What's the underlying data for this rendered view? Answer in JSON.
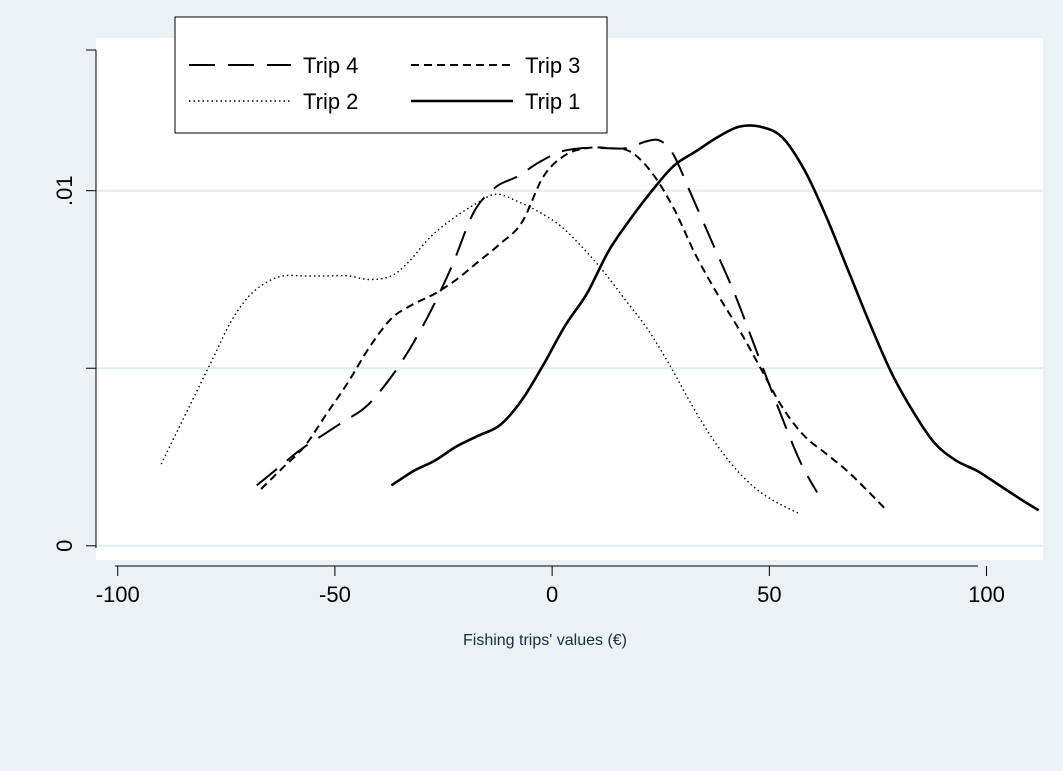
{
  "chart_data": {
    "type": "line",
    "title": "",
    "xlabel": "Fishing trips' values (€)",
    "ylabel": "",
    "xlim": [
      -105,
      113
    ],
    "ylim": [
      -0.0004,
      0.0143
    ],
    "x_ticks": [
      -100,
      -50,
      0,
      50,
      100
    ],
    "x_tick_labels": [
      "-100",
      "-50",
      "0",
      "50",
      "100"
    ],
    "y_ticks": [
      0,
      0.01
    ],
    "y_tick_labels": [
      "0",
      ".01"
    ],
    "y_gridlines": [
      0,
      0.005,
      0.01
    ],
    "grid": true,
    "legend_position": "top-left",
    "colors": {
      "background": "#eaf2f3",
      "plot_area": "#ffffff",
      "grid": "#e3ecee",
      "lines": "#000000"
    },
    "series": [
      {
        "name": "Trip 4",
        "style": "long-dash",
        "x": [
          -68,
          -63,
          -58,
          -53,
          -48,
          -43,
          -38,
          -33,
          -28,
          -23,
          -18,
          -13,
          -8,
          -3,
          2,
          7,
          12,
          17,
          22,
          25,
          28,
          32,
          37,
          42,
          47,
          52,
          57,
          61
        ],
        "y": [
          0.0017,
          0.0022,
          0.0027,
          0.0031,
          0.0035,
          0.0039,
          0.0046,
          0.0055,
          0.0066,
          0.0079,
          0.0094,
          0.0101,
          0.0104,
          0.0108,
          0.0111,
          0.0112,
          0.0112,
          0.0112,
          0.0114,
          0.0114,
          0.011,
          0.0099,
          0.0085,
          0.0071,
          0.0055,
          0.0039,
          0.0024,
          0.0015
        ]
      },
      {
        "name": "Trip 3",
        "style": "short-dash",
        "x": [
          -67,
          -62,
          -57,
          -52,
          -47,
          -42,
          -37,
          -32,
          -27,
          -22,
          -17,
          -12,
          -7,
          -2,
          3,
          8,
          13,
          18,
          23,
          28,
          33,
          38,
          43,
          48,
          53,
          58,
          63,
          68,
          73,
          77
        ],
        "y": [
          0.0016,
          0.0022,
          0.0028,
          0.0037,
          0.0046,
          0.0056,
          0.0064,
          0.0068,
          0.0071,
          0.0075,
          0.008,
          0.0085,
          0.0091,
          0.0104,
          0.011,
          0.0112,
          0.0112,
          0.0111,
          0.0105,
          0.0095,
          0.0082,
          0.0071,
          0.0061,
          0.005,
          0.0039,
          0.0031,
          0.0026,
          0.0021,
          0.0015,
          0.001
        ]
      },
      {
        "name": "Trip 2",
        "style": "dotted",
        "x": [
          -90,
          -86,
          -82,
          -78,
          -74,
          -70,
          -66,
          -62,
          -57,
          -52,
          -47,
          -42,
          -37,
          -33,
          -28,
          -23,
          -18,
          -13,
          -8,
          -3,
          2,
          7,
          12,
          17,
          22,
          27,
          32,
          37,
          42,
          47,
          52,
          57
        ],
        "y": [
          0.0023,
          0.0033,
          0.0043,
          0.0053,
          0.0063,
          0.007,
          0.0074,
          0.0076,
          0.0076,
          0.0076,
          0.0076,
          0.0075,
          0.0076,
          0.008,
          0.0087,
          0.0092,
          0.0096,
          0.0099,
          0.0097,
          0.0094,
          0.009,
          0.0084,
          0.0077,
          0.0069,
          0.0061,
          0.0051,
          0.004,
          0.003,
          0.0022,
          0.0016,
          0.0012,
          0.0009
        ]
      },
      {
        "name": "Trip 1",
        "style": "solid",
        "x": [
          -37,
          -32,
          -27,
          -22,
          -17,
          -12,
          -7,
          -2,
          3,
          8,
          13,
          18,
          23,
          28,
          33,
          38,
          43,
          48,
          53,
          58,
          63,
          68,
          73,
          78,
          83,
          88,
          93,
          98,
          103,
          108,
          112
        ],
        "y": [
          0.0017,
          0.0021,
          0.0024,
          0.0028,
          0.0031,
          0.0034,
          0.0041,
          0.0051,
          0.0062,
          0.0071,
          0.0083,
          0.0092,
          0.01,
          0.0107,
          0.0111,
          0.0115,
          0.0118,
          0.0118,
          0.0115,
          0.0106,
          0.0093,
          0.0078,
          0.0063,
          0.0049,
          0.0038,
          0.0029,
          0.0024,
          0.0021,
          0.0017,
          0.0013,
          0.001
        ]
      }
    ]
  }
}
